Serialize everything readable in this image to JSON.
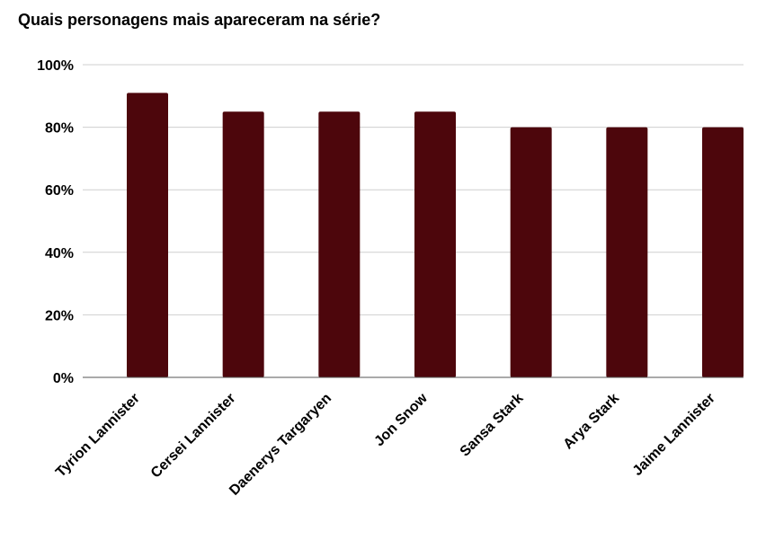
{
  "chart_data": {
    "type": "bar",
    "title": "Quais personagens mais apareceram na série?",
    "categories": [
      "Tyrion Lannister",
      "Cersei Lannister",
      "Daenerys Targaryen",
      "Jon Snow",
      "Sansa Stark",
      "Arya Stark",
      "Jaime Lannister"
    ],
    "series": [
      {
        "values": [
          91,
          85,
          85,
          85,
          80,
          80,
          80
        ]
      }
    ],
    "ylim": [
      0,
      100
    ],
    "y_ticks": [
      0,
      20,
      40,
      60,
      80,
      100
    ],
    "y_tick_labels": [
      "0%",
      "20%",
      "40%",
      "60%",
      "80%",
      "100%"
    ],
    "xlabel": "",
    "ylabel": "",
    "grid": true,
    "legend": "none",
    "colors": {
      "bar": "#4d060c",
      "grid": "#cfcfcf",
      "axis": "#555555",
      "text": "#000000"
    }
  }
}
